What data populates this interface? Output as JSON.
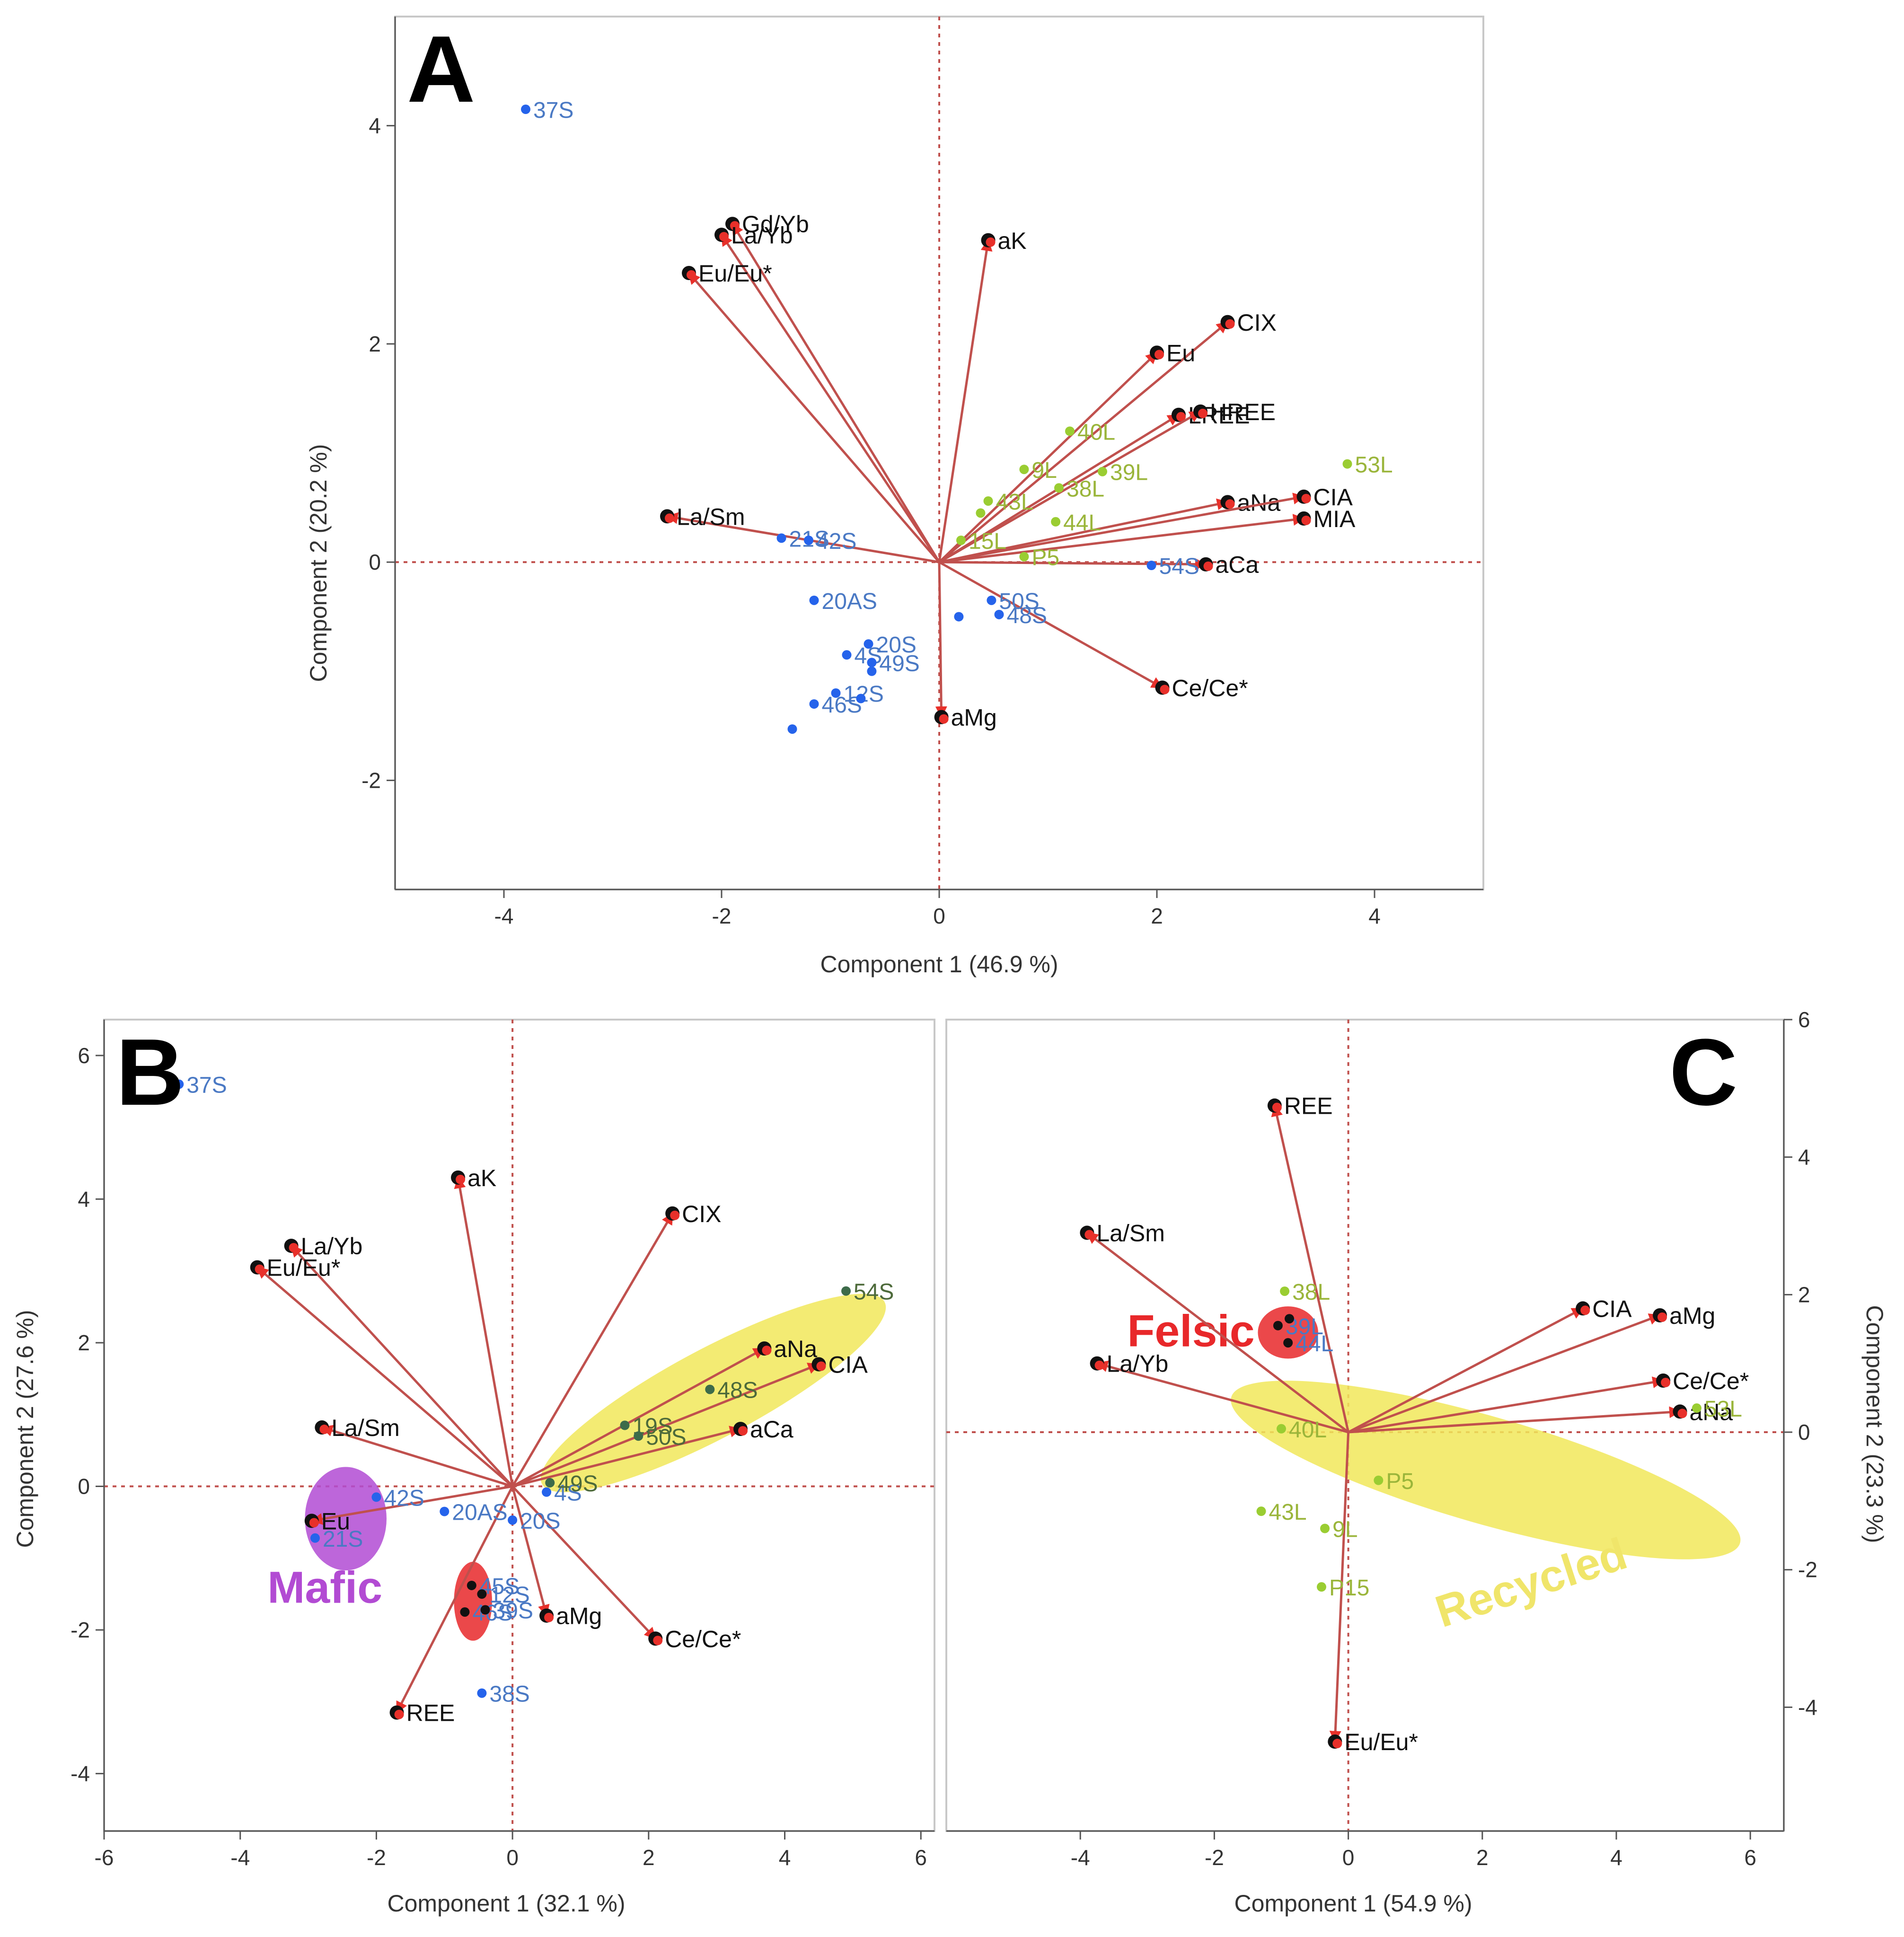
{
  "colors": {
    "arrow": "#c0504d",
    "marker": "#e8302a",
    "sample_S": "#2563eb",
    "sample_S_label": "#4a79c4",
    "sample_L": "#9acd32",
    "sample_L_label": "#9ab53a",
    "mafic": "#b24bd3",
    "felsic": "#e8282a",
    "recycled": "#f1e85a",
    "recycled_text": "#f0e56a"
  },
  "chart_data": [
    {
      "panel": "A",
      "type": "scatter",
      "xlabel": "Component 1  (46.9 %)",
      "ylabel": "Component 2  (20.2 %)",
      "xlim": [
        -5,
        5
      ],
      "ylim": [
        -3,
        5
      ],
      "xticks": [
        -4,
        -2,
        0,
        2,
        4
      ],
      "yticks": [
        -2,
        0,
        2,
        4
      ],
      "xtick_labels": [
        "-4",
        "-2",
        "0",
        "2",
        "4"
      ],
      "ytick_labels": [
        "-2",
        "0",
        "2",
        "4"
      ],
      "y_axis_side": "left",
      "vectors": [
        {
          "label": "Gd/Yb",
          "x": -1.9,
          "y": 3.1
        },
        {
          "label": "La/Yb",
          "x": -2.0,
          "y": 3.0
        },
        {
          "label": "Eu/Eu*",
          "x": -2.3,
          "y": 2.65
        },
        {
          "label": "aK",
          "x": 0.45,
          "y": 2.95
        },
        {
          "label": "CIX",
          "x": 2.65,
          "y": 2.2
        },
        {
          "label": "Eu",
          "x": 2.0,
          "y": 1.92
        },
        {
          "label": "LREE",
          "x": 2.2,
          "y": 1.35
        },
        {
          "label": "HREE",
          "x": 2.4,
          "y": 1.38
        },
        {
          "label": "aNa",
          "x": 2.65,
          "y": 0.55
        },
        {
          "label": "CIA",
          "x": 3.35,
          "y": 0.6
        },
        {
          "label": "MIA",
          "x": 3.35,
          "y": 0.4
        },
        {
          "label": "La/Sm",
          "x": -2.5,
          "y": 0.42
        },
        {
          "label": "aCa",
          "x": 2.45,
          "y": -0.02
        },
        {
          "label": "Ce/Ce*",
          "x": 2.05,
          "y": -1.15
        },
        {
          "label": "aMg",
          "x": 0.02,
          "y": -1.42
        }
      ],
      "points": [
        {
          "label": "37S",
          "x": -3.8,
          "y": 4.15,
          "group": "S"
        },
        {
          "label": "21S",
          "x": -1.45,
          "y": 0.22,
          "group": "S"
        },
        {
          "label": "42S",
          "x": -1.2,
          "y": 0.2,
          "group": "S"
        },
        {
          "label": "20AS",
          "x": -1.15,
          "y": -0.35,
          "group": "S"
        },
        {
          "label": "54S",
          "x": 1.95,
          "y": -0.03,
          "group": "S"
        },
        {
          "label": "50S",
          "x": 0.48,
          "y": -0.35,
          "group": "S"
        },
        {
          "label": "48S",
          "x": 0.55,
          "y": -0.48,
          "group": "S"
        },
        {
          "label": "",
          "x": 0.18,
          "y": -0.5,
          "group": "S"
        },
        {
          "label": "20S",
          "x": -0.65,
          "y": -0.75,
          "group": "S"
        },
        {
          "label": "4S",
          "x": -0.85,
          "y": -0.85,
          "group": "S"
        },
        {
          "label": "49S",
          "x": -0.62,
          "y": -0.92,
          "group": "S"
        },
        {
          "label": "",
          "x": -0.62,
          "y": -1.0,
          "group": "S"
        },
        {
          "label": "46S",
          "x": -1.15,
          "y": -1.3,
          "group": "S"
        },
        {
          "label": "12S",
          "x": -0.95,
          "y": -1.2,
          "group": "S"
        },
        {
          "label": "",
          "x": -0.72,
          "y": -1.25,
          "group": "S"
        },
        {
          "label": "",
          "x": -1.35,
          "y": -1.53,
          "group": "S"
        },
        {
          "label": "9L",
          "x": 0.78,
          "y": 0.85,
          "group": "L"
        },
        {
          "label": "40L",
          "x": 1.2,
          "y": 1.2,
          "group": "L"
        },
        {
          "label": "39L",
          "x": 1.5,
          "y": 0.83,
          "group": "L"
        },
        {
          "label": "43L",
          "x": 0.45,
          "y": 0.56,
          "group": "L"
        },
        {
          "label": "38L",
          "x": 1.1,
          "y": 0.68,
          "group": "L"
        },
        {
          "label": "44L",
          "x": 1.07,
          "y": 0.37,
          "group": "L"
        },
        {
          "label": "15L",
          "x": 0.2,
          "y": 0.2,
          "group": "L"
        },
        {
          "label": "P5",
          "x": 0.78,
          "y": 0.05,
          "group": "L"
        },
        {
          "label": "53L",
          "x": 3.75,
          "y": 0.9,
          "group": "L"
        },
        {
          "label": "",
          "x": 0.38,
          "y": 0.45,
          "group": "L"
        }
      ],
      "groups": []
    },
    {
      "panel": "B",
      "type": "scatter",
      "xlabel": "Component 1  (32.1 %)",
      "ylabel": "Component 2  (27.6 %)",
      "xlim": [
        -6,
        6.2
      ],
      "ylim": [
        -4.8,
        6.5
      ],
      "xticks": [
        -6,
        -4,
        -2,
        0,
        2,
        4,
        6
      ],
      "yticks": [
        -4,
        -2,
        0,
        2,
        4,
        6
      ],
      "xtick_labels": [
        "-6",
        "-4",
        "-2",
        "0",
        "2",
        "4",
        "6"
      ],
      "ytick_labels": [
        "-4",
        "-2",
        "0",
        "2",
        "4",
        "6"
      ],
      "y_axis_side": "left",
      "vectors": [
        {
          "label": "aK",
          "x": -0.8,
          "y": 4.3
        },
        {
          "label": "CIX",
          "x": 2.35,
          "y": 3.8
        },
        {
          "label": "La/Yb",
          "x": -3.25,
          "y": 3.35
        },
        {
          "label": "Eu/Eu*",
          "x": -3.75,
          "y": 3.05
        },
        {
          "label": "aNa",
          "x": 3.7,
          "y": 1.92
        },
        {
          "label": "CIA",
          "x": 4.5,
          "y": 1.7
        },
        {
          "label": "aCa",
          "x": 3.35,
          "y": 0.8
        },
        {
          "label": "La/Sm",
          "x": -2.8,
          "y": 0.82
        },
        {
          "label": "Eu",
          "x": -2.95,
          "y": -0.48
        },
        {
          "label": "aMg",
          "x": 0.5,
          "y": -1.8
        },
        {
          "label": "Ce/Ce*",
          "x": 2.1,
          "y": -2.12
        },
        {
          "label": "REE",
          "x": -1.7,
          "y": -3.15
        }
      ],
      "points": [
        {
          "label": "37S",
          "x": -4.9,
          "y": 5.6,
          "group": "S"
        },
        {
          "label": "42S",
          "x": -2.0,
          "y": -0.15,
          "group": "S"
        },
        {
          "label": "21S",
          "x": -2.9,
          "y": -0.72,
          "group": "S"
        },
        {
          "label": "20AS",
          "x": -1.0,
          "y": -0.35,
          "group": "S"
        },
        {
          "label": "20S",
          "x": 0.0,
          "y": -0.47,
          "group": "S"
        },
        {
          "label": "4S",
          "x": 0.5,
          "y": -0.08,
          "group": "S"
        },
        {
          "label": "38S",
          "x": -0.45,
          "y": -2.88,
          "group": "S"
        },
        {
          "label": "54S",
          "x": 4.9,
          "y": 2.72,
          "group": "dark"
        },
        {
          "label": "48S",
          "x": 2.9,
          "y": 1.35,
          "group": "dark"
        },
        {
          "label": "19S",
          "x": 1.65,
          "y": 0.85,
          "group": "dark"
        },
        {
          "label": "50S",
          "x": 1.85,
          "y": 0.7,
          "group": "dark"
        },
        {
          "label": "49S",
          "x": 0.55,
          "y": 0.05,
          "group": "dark"
        },
        {
          "label": "45S",
          "x": -0.6,
          "y": -1.38,
          "group": "black"
        },
        {
          "label": "12S",
          "x": -0.45,
          "y": -1.5,
          "group": "black"
        },
        {
          "label": "46S",
          "x": -0.7,
          "y": -1.75,
          "group": "black"
        },
        {
          "label": "39S",
          "x": -0.4,
          "y": -1.72,
          "group": "black"
        }
      ],
      "groups": [
        {
          "label": "Mafic",
          "cx": -2.45,
          "cy": -0.45,
          "rx": 0.6,
          "ry": 0.72,
          "angle": 0,
          "color": "#b24bd3",
          "text_x": -3.6,
          "text_y": -1.62
        },
        {
          "label": "",
          "cx": -0.58,
          "cy": -1.6,
          "rx": 0.28,
          "ry": 0.55,
          "angle": 0,
          "color": "#e8282a"
        },
        {
          "label": "",
          "cx": 2.95,
          "cy": 1.3,
          "rx": 2.85,
          "ry": 0.62,
          "angle": 28,
          "color": "#f1e85a"
        }
      ]
    },
    {
      "panel": "C",
      "type": "scatter",
      "xlabel": "Component 1  (54.9 %)",
      "ylabel": "Component 2  (23.3 %)",
      "xlim": [
        -6,
        6.5
      ],
      "ylim": [
        -5.8,
        6
      ],
      "xticks": [
        -4,
        -2,
        0,
        2,
        4,
        6
      ],
      "yticks": [
        -4,
        -2,
        0,
        2,
        4,
        6
      ],
      "xtick_labels": [
        "-4",
        "-2",
        "0",
        "2",
        "4",
        "6"
      ],
      "ytick_labels": [
        "-4",
        "-2",
        "0",
        "2",
        "4",
        "6"
      ],
      "y_axis_side": "right",
      "vectors": [
        {
          "label": "REE",
          "x": -1.1,
          "y": 4.75
        },
        {
          "label": "La/Sm",
          "x": -3.9,
          "y": 2.9
        },
        {
          "label": "La/Yb",
          "x": -3.75,
          "y": 1.0
        },
        {
          "label": "CIA",
          "x": 3.5,
          "y": 1.8
        },
        {
          "label": "aMg",
          "x": 4.65,
          "y": 1.7
        },
        {
          "label": "Ce/Ce*",
          "x": 4.7,
          "y": 0.75
        },
        {
          "label": "aNa",
          "x": 4.95,
          "y": 0.3
        },
        {
          "label": "Eu/Eu*",
          "x": -0.2,
          "y": -4.5
        }
      ],
      "points": [
        {
          "label": "38L",
          "x": -0.95,
          "y": 2.05,
          "group": "L"
        },
        {
          "label": "39L",
          "x": -1.05,
          "y": 1.55,
          "group": "black"
        },
        {
          "label": "44L",
          "x": -0.9,
          "y": 1.3,
          "group": "black"
        },
        {
          "label": "",
          "x": -0.88,
          "y": 1.65,
          "group": "black"
        },
        {
          "label": "40L",
          "x": -1.0,
          "y": 0.05,
          "group": "L"
        },
        {
          "label": "53L",
          "x": 5.2,
          "y": 0.35,
          "group": "L"
        },
        {
          "label": "P5",
          "x": 0.45,
          "y": -0.7,
          "group": "L"
        },
        {
          "label": "43L",
          "x": -1.3,
          "y": -1.15,
          "group": "L"
        },
        {
          "label": "9L",
          "x": -0.35,
          "y": -1.4,
          "group": "L"
        },
        {
          "label": "P15",
          "x": -0.4,
          "y": -2.25,
          "group": "L"
        }
      ],
      "groups": [
        {
          "label": "Felsic",
          "cx": -0.9,
          "cy": 1.45,
          "rx": 0.45,
          "ry": 0.38,
          "angle": 0,
          "color": "#e8282a",
          "text_x": -3.3,
          "text_y": 1.25
        },
        {
          "label": "Recycled",
          "cx": 2.05,
          "cy": -0.55,
          "rx": 3.95,
          "ry": 0.78,
          "angle": -16,
          "color": "#f1e85a",
          "text_x": 2.8,
          "text_y": -2.4
        }
      ]
    }
  ]
}
